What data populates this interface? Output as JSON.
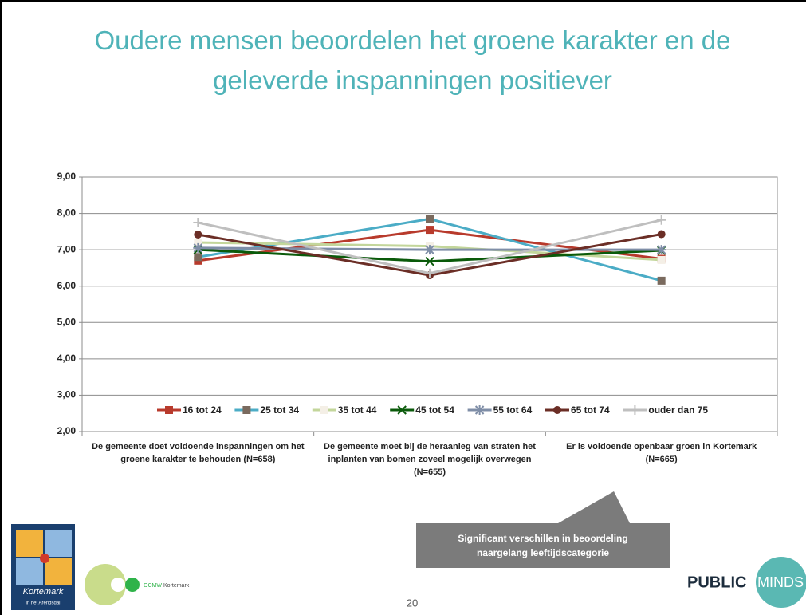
{
  "chart_data": {
    "type": "line",
    "title": "Oudere mensen beoordelen het groene karakter en de geleverde inspanningen positiever",
    "categories": [
      "De gemeente doet voldoende inspanningen om het groene karakter te behouden (N=658)",
      "De gemeente moet bij de heraanleg van straten het inplanten van bomen zoveel mogelijk overwegen (N=655)",
      "Er is voldoende openbaar groen in Kortemark (N=665)"
    ],
    "series": [
      {
        "name": "16 tot 24",
        "color": "#b83a2c",
        "marker": "square",
        "values": [
          6.7,
          7.55,
          6.75
        ]
      },
      {
        "name": "25 tot 34",
        "color": "#4bacc6",
        "marker": "square-gray",
        "values": [
          6.8,
          7.85,
          6.15
        ]
      },
      {
        "name": "35 tot 44",
        "color": "#c3d69b",
        "marker": "square-white",
        "values": [
          7.2,
          7.1,
          6.72
        ]
      },
      {
        "name": "45 tot 54",
        "color": "#0a5a0a",
        "marker": "x",
        "values": [
          7.0,
          6.68,
          6.98
        ]
      },
      {
        "name": "55 tot 64",
        "color": "#7f8ea7",
        "marker": "star",
        "values": [
          7.05,
          7.0,
          7.0
        ]
      },
      {
        "name": "65 tot 74",
        "color": "#6b2e26",
        "marker": "circle",
        "values": [
          7.42,
          6.3,
          7.43
        ]
      },
      {
        "name": "ouder dan 75",
        "color": "#bfbfbf",
        "marker": "plus",
        "values": [
          7.75,
          6.35,
          7.82
        ]
      }
    ],
    "ylim": [
      2,
      9
    ],
    "yticks": [
      {
        "value": 2,
        "label": "2,00"
      },
      {
        "value": 3,
        "label": "3,00"
      },
      {
        "value": 4,
        "label": "4,00"
      },
      {
        "value": 5,
        "label": "5,00"
      },
      {
        "value": 6,
        "label": "6,00"
      },
      {
        "value": 7,
        "label": "7,00"
      },
      {
        "value": 8,
        "label": "8,00"
      },
      {
        "value": 9,
        "label": "9,00"
      }
    ],
    "grid": true,
    "legend": "bottom"
  },
  "slide": {
    "callout": "Significant verschillen in beoordeling naargelang leeftijdscategorie",
    "page_number": "20",
    "logo_left": "Kortemark",
    "logo_left_sub": "in het Arendsdal",
    "logo_ocmw": "OCMW",
    "logo_ocmw_name": "Kortemark",
    "logo_public": "PUBLIC",
    "logo_minds": "MINDS"
  }
}
